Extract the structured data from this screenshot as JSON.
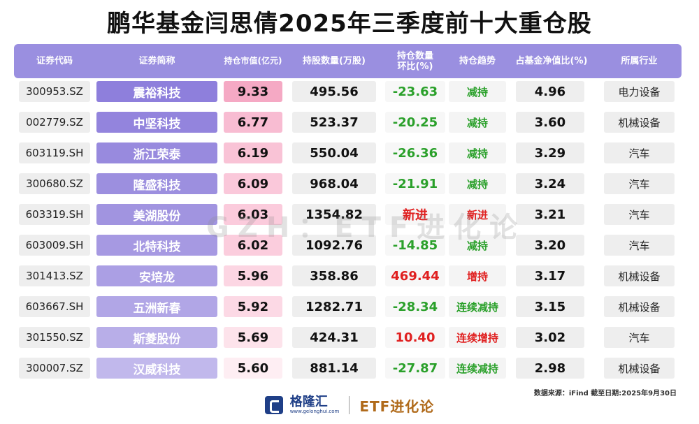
{
  "title": "鹏华基金闫思倩2025年三季度前十大重仓股",
  "headers": [
    "证券代码",
    "证券简称",
    "持仓市值(亿元)",
    "持股数量(万股)",
    "持仓数量\n环比(%)",
    "持仓趋势",
    "占基金净值比(%)",
    "所属行业"
  ],
  "rows": [
    {
      "code": "300953.SZ",
      "name": "震裕科技",
      "mv": "9.33",
      "qty": "495.56",
      "chg": "-23.63",
      "trend": "减持",
      "nav": "4.96",
      "ind": "电力设备"
    },
    {
      "code": "002779.SZ",
      "name": "中坚科技",
      "mv": "6.77",
      "qty": "523.37",
      "chg": "-20.25",
      "trend": "减持",
      "nav": "3.60",
      "ind": "机械设备"
    },
    {
      "code": "603119.SH",
      "name": "浙江荣泰",
      "mv": "6.19",
      "qty": "550.04",
      "chg": "-26.36",
      "trend": "减持",
      "nav": "3.29",
      "ind": "汽车"
    },
    {
      "code": "300680.SZ",
      "name": "隆盛科技",
      "mv": "6.09",
      "qty": "968.04",
      "chg": "-21.91",
      "trend": "减持",
      "nav": "3.24",
      "ind": "汽车"
    },
    {
      "code": "603319.SH",
      "name": "美湖股份",
      "mv": "6.03",
      "qty": "1354.82",
      "chg": "新进",
      "trend": "新进",
      "nav": "3.21",
      "ind": "汽车"
    },
    {
      "code": "603009.SH",
      "name": "北特科技",
      "mv": "6.02",
      "qty": "1092.76",
      "chg": "-14.85",
      "trend": "减持",
      "nav": "3.20",
      "ind": "汽车"
    },
    {
      "code": "301413.SZ",
      "name": "安培龙",
      "mv": "5.96",
      "qty": "358.86",
      "chg": "469.44",
      "trend": "增持",
      "nav": "3.17",
      "ind": "机械设备"
    },
    {
      "code": "603667.SH",
      "name": "五洲新春",
      "mv": "5.92",
      "qty": "1282.71",
      "chg": "-28.34",
      "trend": "连续减持",
      "nav": "3.15",
      "ind": "机械设备"
    },
    {
      "code": "301550.SZ",
      "name": "斯菱股份",
      "mv": "5.69",
      "qty": "424.31",
      "chg": "10.40",
      "trend": "连续增持",
      "nav": "3.02",
      "ind": "汽车"
    },
    {
      "code": "300007.SZ",
      "name": "汉威科技",
      "mv": "5.60",
      "qty": "881.14",
      "chg": "-27.87",
      "trend": "连续减持",
      "nav": "2.98",
      "ind": "机械设备"
    }
  ],
  "colors": {
    "header_bg": "#9a8fe0",
    "name_bg": [
      "#8e7fdc",
      "#9384dd",
      "#988ade",
      "#9c8fdf",
      "#a194e0",
      "#a699e2",
      "#ab9fe4",
      "#b1a6e6",
      "#b8aee8",
      "#c1b8ec"
    ],
    "mv_bg": [
      "#f5a9c4",
      "#f8bcd2",
      "#f9c3d6",
      "#fac8da",
      "#fbcbdc",
      "#fbcddd",
      "#fcd6e3",
      "#fcd9e5",
      "#fde3eb",
      "#feeef3"
    ],
    "green": "#2aa02a",
    "red": "#e02020"
  },
  "watermark": "GZH：ETF进化论",
  "source": "数据来源：iFind 截至日期:2025年9月30日",
  "footer": {
    "brand": "格隆汇",
    "brand_url": "www.gelonghui.com",
    "etf": "ETF进化论"
  },
  "icons": {
    "logo": "gelonghui-logo-icon"
  }
}
